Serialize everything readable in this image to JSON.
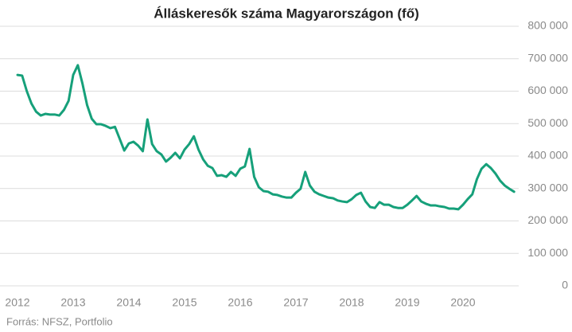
{
  "chart_data": {
    "type": "line",
    "title": "Álláskeresők száma Magyarországon (fő)",
    "source": "Forrás: NFSZ, Portfolio",
    "color": "#16a07a",
    "xlim": [
      2012,
      2021
    ],
    "xticks": [
      2012,
      2013,
      2014,
      2015,
      2016,
      2017,
      2018,
      2019,
      2020
    ],
    "ylim": [
      0,
      800000
    ],
    "yticks": [
      0,
      {
        "value": 100000,
        "label": "100 000"
      },
      {
        "value": 200000,
        "label": "200 000"
      },
      {
        "value": 300000,
        "label": "300 000"
      },
      {
        "value": 400000,
        "label": "400 000"
      },
      {
        "value": 500000,
        "label": "500 000"
      },
      {
        "value": 600000,
        "label": "600 000"
      },
      {
        "value": 700000,
        "label": "700 000"
      },
      {
        "value": 800000,
        "label": "800 000"
      }
    ],
    "grid": true,
    "x": [
      2012,
      2012.083,
      2012.167,
      2012.25,
      2012.333,
      2012.417,
      2012.5,
      2012.583,
      2012.667,
      2012.75,
      2012.833,
      2012.917,
      2013,
      2013.083,
      2013.167,
      2013.25,
      2013.333,
      2013.417,
      2013.5,
      2013.583,
      2013.667,
      2013.75,
      2013.833,
      2013.917,
      2014,
      2014.083,
      2014.167,
      2014.25,
      2014.333,
      2014.417,
      2014.5,
      2014.583,
      2014.667,
      2014.75,
      2014.833,
      2014.917,
      2015,
      2015.083,
      2015.167,
      2015.25,
      2015.333,
      2015.417,
      2015.5,
      2015.583,
      2015.667,
      2015.75,
      2015.833,
      2015.917,
      2016,
      2016.083,
      2016.167,
      2016.25,
      2016.333,
      2016.417,
      2016.5,
      2016.583,
      2016.667,
      2016.75,
      2016.833,
      2016.917,
      2017,
      2017.083,
      2017.167,
      2017.25,
      2017.333,
      2017.417,
      2017.5,
      2017.583,
      2017.667,
      2017.75,
      2017.833,
      2017.917,
      2018,
      2018.083,
      2018.167,
      2018.25,
      2018.333,
      2018.417,
      2018.5,
      2018.583,
      2018.667,
      2018.75,
      2018.833,
      2018.917,
      2019,
      2019.083,
      2019.167,
      2019.25,
      2019.333,
      2019.417,
      2019.5,
      2019.583,
      2019.667,
      2019.75,
      2019.833,
      2019.917,
      2020,
      2020.083,
      2020.167,
      2020.25,
      2020.333,
      2020.417,
      2020.5,
      2020.583,
      2020.667,
      2020.75,
      2020.833,
      2020.917
    ],
    "values": [
      650000,
      648000,
      600000,
      562000,
      537000,
      525000,
      530000,
      528000,
      528000,
      525000,
      542000,
      570000,
      650000,
      680000,
      623000,
      557000,
      515000,
      498000,
      498000,
      493000,
      486000,
      490000,
      454000,
      417000,
      439000,
      444000,
      432000,
      415000,
      513000,
      437000,
      415000,
      405000,
      383000,
      395000,
      410000,
      393000,
      420000,
      437000,
      461000,
      420000,
      390000,
      370000,
      363000,
      339000,
      341000,
      336000,
      351000,
      339000,
      361000,
      368000,
      422000,
      336000,
      304000,
      292000,
      290000,
      282000,
      280000,
      275000,
      272000,
      272000,
      287000,
      299000,
      351000,
      309000,
      290000,
      282000,
      277000,
      272000,
      270000,
      263000,
      260000,
      258000,
      267000,
      280000,
      287000,
      260000,
      243000,
      240000,
      258000,
      250000,
      250000,
      243000,
      240000,
      240000,
      250000,
      263000,
      277000,
      260000,
      253000,
      248000,
      248000,
      245000,
      243000,
      238000,
      238000,
      236000,
      250000,
      267000,
      282000,
      329000,
      361000,
      375000,
      363000,
      346000,
      324000,
      309000,
      299000,
      290000
    ]
  }
}
